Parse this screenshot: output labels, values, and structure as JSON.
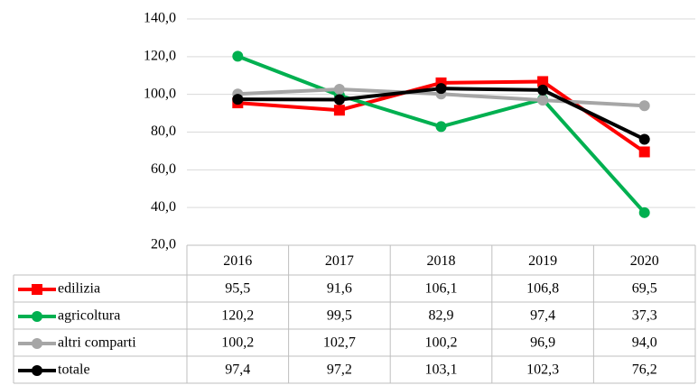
{
  "chart_data": {
    "type": "line",
    "categories": [
      "2016",
      "2017",
      "2018",
      "2019",
      "2020"
    ],
    "series": [
      {
        "name": "edilizia",
        "color": "#ff0000",
        "marker": "square",
        "values": [
          95.5,
          91.6,
          106.1,
          106.8,
          69.5
        ],
        "value_labels": [
          "95,5",
          "91,6",
          "106,1",
          "106,8",
          "69,5"
        ]
      },
      {
        "name": "agricoltura",
        "color": "#00b050",
        "marker": "circle",
        "values": [
          120.2,
          99.5,
          82.9,
          97.4,
          37.3
        ],
        "value_labels": [
          "120,2",
          "99,5",
          "82,9",
          "97,4",
          "37,3"
        ]
      },
      {
        "name": "altri comparti",
        "color": "#a6a6a6",
        "marker": "circle",
        "values": [
          100.2,
          102.7,
          100.2,
          96.9,
          94.0
        ],
        "value_labels": [
          "100,2",
          "102,7",
          "100,2",
          "96,9",
          "94,0"
        ]
      },
      {
        "name": "totale",
        "color": "#000000",
        "marker": "circle",
        "values": [
          97.4,
          97.2,
          103.1,
          102.3,
          76.2
        ],
        "value_labels": [
          "97,4",
          "97,2",
          "103,1",
          "102,3",
          "76,2"
        ]
      }
    ],
    "ylim": [
      20,
      140
    ],
    "yticks": [
      {
        "value": 20,
        "label": "20,0"
      },
      {
        "value": 40,
        "label": "40,0"
      },
      {
        "value": 60,
        "label": "60,0"
      },
      {
        "value": 80,
        "label": "80,0"
      },
      {
        "value": 100,
        "label": "100,0"
      },
      {
        "value": 120,
        "label": "120,0"
      },
      {
        "value": 140,
        "label": "140,0"
      }
    ],
    "grid": true
  }
}
